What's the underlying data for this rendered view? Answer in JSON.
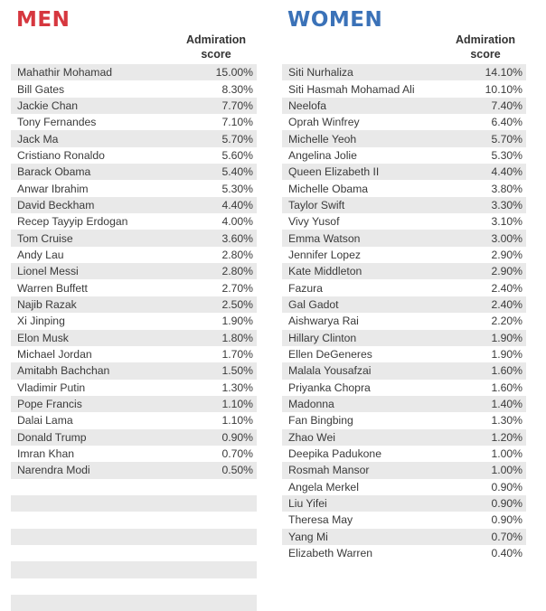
{
  "colors": {
    "men_heading": "#d6373f",
    "women_heading": "#3b72b8",
    "row_shade": "#e9e9e9"
  },
  "men": {
    "heading": "MEN",
    "column_header_line1": "Admiration",
    "column_header_line2": "score",
    "rows": [
      {
        "name": "Mahathir Mohamad",
        "score": "15.00%"
      },
      {
        "name": "Bill Gates",
        "score": "8.30%"
      },
      {
        "name": "Jackie Chan",
        "score": "7.70%"
      },
      {
        "name": "Tony Fernandes",
        "score": "7.10%"
      },
      {
        "name": "Jack Ma",
        "score": "5.70%"
      },
      {
        "name": "Cristiano Ronaldo",
        "score": "5.60%"
      },
      {
        "name": "Barack Obama",
        "score": "5.40%"
      },
      {
        "name": "Anwar Ibrahim",
        "score": "5.30%"
      },
      {
        "name": "David Beckham",
        "score": "4.40%"
      },
      {
        "name": "Recep Tayyip Erdogan",
        "score": "4.00%"
      },
      {
        "name": "Tom Cruise",
        "score": "3.60%"
      },
      {
        "name": "Andy Lau",
        "score": "2.80%"
      },
      {
        "name": "Lionel Messi",
        "score": "2.80%"
      },
      {
        "name": "Warren Buffett",
        "score": "2.70%"
      },
      {
        "name": "Najib Razak",
        "score": "2.50%"
      },
      {
        "name": "Xi Jinping",
        "score": "1.90%"
      },
      {
        "name": "Elon Musk",
        "score": "1.80%"
      },
      {
        "name": "Michael Jordan",
        "score": "1.70%"
      },
      {
        "name": "Amitabh Bachchan",
        "score": "1.50%"
      },
      {
        "name": "Vladimir Putin",
        "score": "1.30%"
      },
      {
        "name": "Pope Francis",
        "score": "1.10%"
      },
      {
        "name": "Dalai Lama",
        "score": "1.10%"
      },
      {
        "name": "Donald Trump",
        "score": "0.90%"
      },
      {
        "name": "Imran Khan",
        "score": "0.70%"
      },
      {
        "name": "Narendra Modi",
        "score": "0.50%"
      },
      {
        "name": "",
        "score": ""
      },
      {
        "name": "",
        "score": ""
      },
      {
        "name": "",
        "score": ""
      },
      {
        "name": "",
        "score": ""
      },
      {
        "name": "",
        "score": ""
      },
      {
        "name": "",
        "score": ""
      },
      {
        "name": "",
        "score": ""
      },
      {
        "name": "",
        "score": ""
      }
    ]
  },
  "women": {
    "heading": "WOMEN",
    "column_header_line1": "Admiration",
    "column_header_line2": "score",
    "rows": [
      {
        "name": "Siti Nurhaliza",
        "score": "14.10%"
      },
      {
        "name": "Siti Hasmah Mohamad Ali",
        "score": "10.10%"
      },
      {
        "name": "Neelofa",
        "score": "7.40%"
      },
      {
        "name": "Oprah Winfrey",
        "score": "6.40%"
      },
      {
        "name": "Michelle Yeoh",
        "score": "5.70%"
      },
      {
        "name": "Angelina Jolie",
        "score": "5.30%"
      },
      {
        "name": "Queen Elizabeth II",
        "score": "4.40%"
      },
      {
        "name": "Michelle Obama",
        "score": "3.80%"
      },
      {
        "name": "Taylor Swift",
        "score": "3.30%"
      },
      {
        "name": "Vivy Yusof",
        "score": "3.10%"
      },
      {
        "name": "Emma Watson",
        "score": "3.00%"
      },
      {
        "name": "Jennifer Lopez",
        "score": "2.90%"
      },
      {
        "name": "Kate Middleton",
        "score": "2.90%"
      },
      {
        "name": "Fazura",
        "score": "2.40%"
      },
      {
        "name": "Gal Gadot",
        "score": "2.40%"
      },
      {
        "name": "Aishwarya Rai",
        "score": "2.20%"
      },
      {
        "name": "Hillary Clinton",
        "score": "1.90%"
      },
      {
        "name": "Ellen DeGeneres",
        "score": "1.90%"
      },
      {
        "name": "Malala Yousafzai",
        "score": "1.60%"
      },
      {
        "name": "Priyanka Chopra",
        "score": "1.60%"
      },
      {
        "name": "Madonna",
        "score": "1.40%"
      },
      {
        "name": "Fan Bingbing",
        "score": "1.30%"
      },
      {
        "name": "Zhao Wei",
        "score": "1.20%"
      },
      {
        "name": "Deepika Padukone",
        "score": "1.00%"
      },
      {
        "name": "Rosmah Mansor",
        "score": "1.00%"
      },
      {
        "name": "Angela Merkel",
        "score": "0.90%"
      },
      {
        "name": "Liu Yifei",
        "score": "0.90%"
      },
      {
        "name": "Theresa May",
        "score": "0.90%"
      },
      {
        "name": "Yang Mi",
        "score": "0.70%"
      },
      {
        "name": "Elizabeth Warren",
        "score": "0.40%"
      }
    ]
  },
  "chart_data": [
    {
      "type": "table",
      "title": "MEN",
      "columns": [
        "",
        "Admiration score"
      ],
      "categories": [
        "Mahathir Mohamad",
        "Bill Gates",
        "Jackie Chan",
        "Tony Fernandes",
        "Jack Ma",
        "Cristiano Ronaldo",
        "Barack Obama",
        "Anwar Ibrahim",
        "David Beckham",
        "Recep Tayyip Erdogan",
        "Tom Cruise",
        "Andy Lau",
        "Lionel Messi",
        "Warren Buffett",
        "Najib Razak",
        "Xi Jinping",
        "Elon Musk",
        "Michael Jordan",
        "Amitabh Bachchan",
        "Vladimir Putin",
        "Pope Francis",
        "Dalai Lama",
        "Donald Trump",
        "Imran Khan",
        "Narendra Modi"
      ],
      "values": [
        15.0,
        8.3,
        7.7,
        7.1,
        5.7,
        5.6,
        5.4,
        5.3,
        4.4,
        4.0,
        3.6,
        2.8,
        2.8,
        2.7,
        2.5,
        1.9,
        1.8,
        1.7,
        1.5,
        1.3,
        1.1,
        1.1,
        0.9,
        0.7,
        0.5
      ]
    },
    {
      "type": "table",
      "title": "WOMEN",
      "columns": [
        "",
        "Admiration score"
      ],
      "categories": [
        "Siti Nurhaliza",
        "Siti Hasmah Mohamad Ali",
        "Neelofa",
        "Oprah Winfrey",
        "Michelle Yeoh",
        "Angelina Jolie",
        "Queen Elizabeth II",
        "Michelle Obama",
        "Taylor Swift",
        "Vivy Yusof",
        "Emma Watson",
        "Jennifer Lopez",
        "Kate Middleton",
        "Fazura",
        "Gal Gadot",
        "Aishwarya Rai",
        "Hillary Clinton",
        "Ellen DeGeneres",
        "Malala Yousafzai",
        "Priyanka Chopra",
        "Madonna",
        "Fan Bingbing",
        "Zhao Wei",
        "Deepika Padukone",
        "Rosmah Mansor",
        "Angela Merkel",
        "Liu Yifei",
        "Theresa May",
        "Yang Mi",
        "Elizabeth Warren"
      ],
      "values": [
        14.1,
        10.1,
        7.4,
        6.4,
        5.7,
        5.3,
        4.4,
        3.8,
        3.3,
        3.1,
        3.0,
        2.9,
        2.9,
        2.4,
        2.4,
        2.2,
        1.9,
        1.9,
        1.6,
        1.6,
        1.4,
        1.3,
        1.2,
        1.0,
        1.0,
        0.9,
        0.9,
        0.9,
        0.7,
        0.4
      ]
    }
  ]
}
